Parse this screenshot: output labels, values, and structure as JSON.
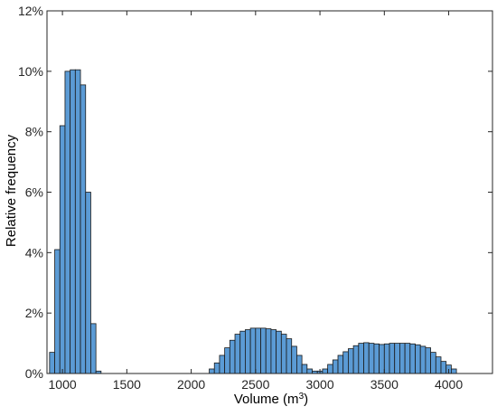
{
  "chart_data": {
    "type": "bar",
    "subtype": "histogram",
    "xlabel": "Volume  (m",
    "xlabel_sup": "3",
    "xlabel_close": ")",
    "ylabel": "Relative frequency",
    "xlim": [
      880,
      4340
    ],
    "ylim": [
      0,
      12
    ],
    "bin_width": 40,
    "bin_start": 900,
    "x_ticks": [
      1000,
      1500,
      2000,
      2500,
      3000,
      3500,
      4000
    ],
    "x_tick_labels": [
      "1000",
      "1500",
      "2000",
      "2500",
      "3000",
      "3500",
      "4000"
    ],
    "y_ticks": [
      0,
      2,
      4,
      6,
      8,
      10,
      12
    ],
    "y_tick_labels": [
      "0%",
      "2%",
      "4%",
      "6%",
      "8%",
      "10%",
      "12%"
    ],
    "grid": false,
    "colors": {
      "bar_fill": "#5b9bd5",
      "bar_edge": "#1a1a1a"
    },
    "values": [
      0.7,
      4.1,
      8.2,
      10.0,
      10.05,
      10.05,
      9.55,
      6.0,
      1.65,
      0.08,
      0,
      0,
      0,
      0,
      0,
      0,
      0,
      0,
      0,
      0,
      0,
      0,
      0,
      0,
      0,
      0,
      0,
      0,
      0,
      0,
      0,
      0.15,
      0.35,
      0.6,
      0.85,
      1.1,
      1.3,
      1.4,
      1.45,
      1.5,
      1.5,
      1.5,
      1.48,
      1.45,
      1.4,
      1.3,
      1.15,
      0.9,
      0.6,
      0.3,
      0.15,
      0.08,
      0.08,
      0.15,
      0.3,
      0.45,
      0.6,
      0.72,
      0.82,
      0.92,
      1.0,
      1.02,
      1.0,
      0.98,
      0.96,
      0.98,
      1.0,
      1.0,
      1.0,
      1.0,
      0.98,
      0.95,
      0.9,
      0.85,
      0.7,
      0.55,
      0.4,
      0.28,
      0.15
    ]
  }
}
